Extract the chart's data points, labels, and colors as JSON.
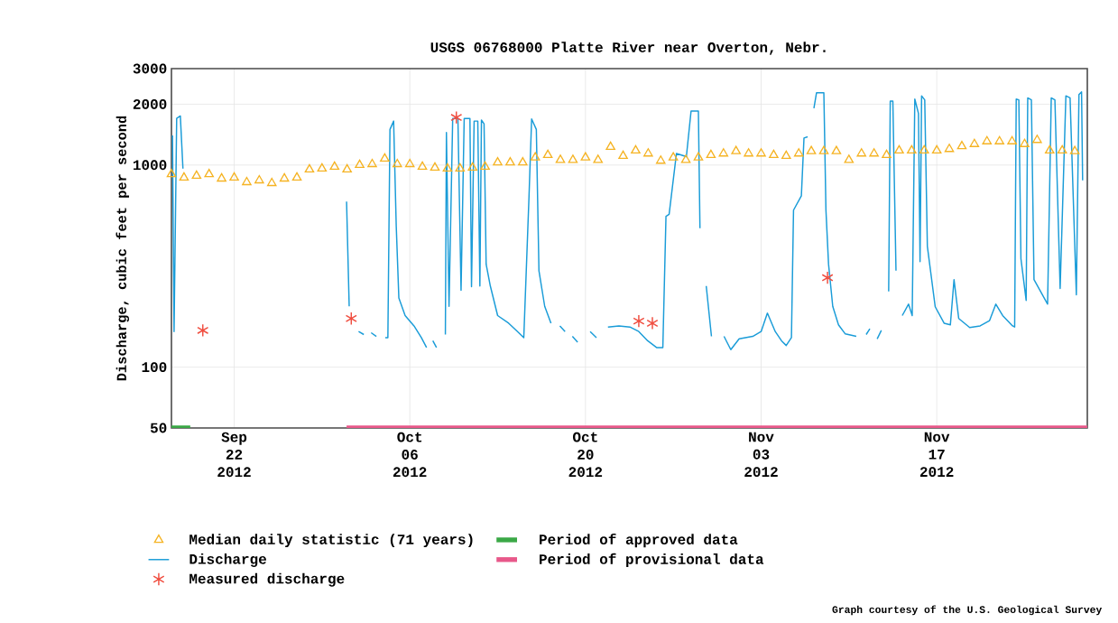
{
  "chart_data": {
    "type": "line",
    "title": "USGS 06768000 Platte River near Overton, Nebr.",
    "ylabel": "Discharge, cubic feet per second",
    "log": "y",
    "grid": true,
    "legend": "bottom",
    "xlim": [
      "2012-09-17",
      "2012-11-29"
    ],
    "ylim": [
      50,
      3000
    ],
    "xticks": [
      {
        "value": "2012-09-22",
        "label": "Sep 22 2012"
      },
      {
        "value": "2012-10-06",
        "label": "Oct 06 2012"
      },
      {
        "value": "2012-10-20",
        "label": "Oct 20 2012"
      },
      {
        "value": "2012-11-03",
        "label": "Nov 03 2012"
      },
      {
        "value": "2012-11-17",
        "label": "Nov 17 2012"
      }
    ],
    "yticks": [
      50,
      100,
      1000,
      2000,
      3000
    ],
    "series": [
      {
        "name": "Median daily statistic (71 years)",
        "type": "scatter",
        "marker": "triangle",
        "color": "#f5b323",
        "x": [
          "2012-09-17",
          "2012-09-18",
          "2012-09-19",
          "2012-09-20",
          "2012-09-21",
          "2012-09-22",
          "2012-09-23",
          "2012-09-24",
          "2012-09-25",
          "2012-09-26",
          "2012-09-27",
          "2012-09-28",
          "2012-09-29",
          "2012-09-30",
          "2012-10-01",
          "2012-10-02",
          "2012-10-03",
          "2012-10-04",
          "2012-10-05",
          "2012-10-06",
          "2012-10-07",
          "2012-10-08",
          "2012-10-09",
          "2012-10-10",
          "2012-10-11",
          "2012-10-12",
          "2012-10-13",
          "2012-10-14",
          "2012-10-15",
          "2012-10-16",
          "2012-10-17",
          "2012-10-18",
          "2012-10-19",
          "2012-10-20",
          "2012-10-21",
          "2012-10-22",
          "2012-10-23",
          "2012-10-24",
          "2012-10-25",
          "2012-10-26",
          "2012-10-27",
          "2012-10-28",
          "2012-10-29",
          "2012-10-30",
          "2012-10-31",
          "2012-11-01",
          "2012-11-02",
          "2012-11-03",
          "2012-11-04",
          "2012-11-05",
          "2012-11-06",
          "2012-11-07",
          "2012-11-08",
          "2012-11-09",
          "2012-11-10",
          "2012-11-11",
          "2012-11-12",
          "2012-11-13",
          "2012-11-14",
          "2012-11-15",
          "2012-11-16",
          "2012-11-17",
          "2012-11-18",
          "2012-11-19",
          "2012-11-20",
          "2012-11-21",
          "2012-11-22",
          "2012-11-23",
          "2012-11-24",
          "2012-11-25",
          "2012-11-26",
          "2012-11-27",
          "2012-11-28"
        ],
        "values": [
          900,
          866,
          884,
          900,
          857,
          866,
          822,
          839,
          814,
          857,
          866,
          950,
          960,
          980,
          950,
          1000,
          1010,
          1075,
          1010,
          1010,
          980,
          970,
          960,
          960,
          970,
          980,
          1030,
          1030,
          1030,
          1090,
          1120,
          1060,
          1060,
          1090,
          1060,
          1230,
          1110,
          1180,
          1140,
          1050,
          1090,
          1060,
          1090,
          1120,
          1140,
          1170,
          1140,
          1140,
          1120,
          1110,
          1140,
          1170,
          1170,
          1170,
          1060,
          1140,
          1140,
          1120,
          1180,
          1180,
          1180,
          1180,
          1200,
          1240,
          1270,
          1310,
          1310,
          1310,
          1270,
          1330,
          1180,
          1180,
          1170
        ]
      },
      {
        "name": "Discharge",
        "marker": "none",
        "color": "#1a9cd8",
        "x": [
          "2012-09-17T02:00",
          "2012-09-17T05:00",
          "2012-09-17T10:00",
          "2012-09-17T17:00",
          "2012-09-17T22:00",
          "2012-09-24T00:00",
          "2012-09-30T23:00",
          "2012-10-01T04:00",
          "2012-10-01T12:00",
          "2012-10-01T22:00",
          "2012-10-02T08:00",
          "2012-10-02T14:00",
          "2012-10-02T22:00",
          "2012-10-03T08:00",
          "2012-10-03T14:00",
          "2012-10-04T01:00",
          "2012-10-04T06:00",
          "2012-10-04T10:00",
          "2012-10-04T17:00",
          "2012-10-04T22:00",
          "2012-10-05T03:00",
          "2012-10-05T15:00",
          "2012-10-06T08:00",
          "2012-10-06T22:00",
          "2012-10-07T08:00",
          "2012-10-07T14:00",
          "2012-10-07T20:00",
          "2012-10-08T03:00",
          "2012-10-08T12:00",
          "2012-10-08T20:00",
          "2012-10-08T22:00",
          "2012-10-09T03:00",
          "2012-10-09T10:00",
          "2012-10-09T20:00",
          "2012-10-10T02:00",
          "2012-10-10T08:00",
          "2012-10-10T19:00",
          "2012-10-10T22:00",
          "2012-10-11T03:00",
          "2012-10-11T10:00",
          "2012-10-11T14:00",
          "2012-10-11T17:00",
          "2012-10-11T22:00",
          "2012-10-12T02:00",
          "2012-10-12T10:00",
          "2012-10-13T00:00",
          "2012-10-13T21:00",
          "2012-10-14T14:00",
          "2012-10-15T02:00",
          "2012-10-15T12:00",
          "2012-10-15T17:00",
          "2012-10-16T02:00",
          "2012-10-16T07:00",
          "2012-10-16T18:00",
          "2012-10-17T06:00",
          "2012-10-17T14:00",
          "2012-10-17T23:00",
          "2012-10-18T09:00",
          "2012-10-18T16:00",
          "2012-10-18T23:00",
          "2012-10-19T09:00",
          "2012-10-19T20:00",
          "2012-10-20T09:00",
          "2012-10-20T21:00",
          "2012-10-21T08:00",
          "2012-10-21T19:00",
          "2012-10-22T16:00",
          "2012-10-23T13:00",
          "2012-10-24T06:00",
          "2012-10-24T23:00",
          "2012-10-25T16:00",
          "2012-10-26T04:00",
          "2012-10-26T10:00",
          "2012-10-26T16:00",
          "2012-10-27T06:00",
          "2012-10-28T01:00",
          "2012-10-28T10:00",
          "2012-10-29T00:00",
          "2012-10-29T03:00",
          "2012-10-29T09:00",
          "2012-10-29T15:00",
          "2012-10-30T01:00",
          "2012-10-30T12:00",
          "2012-10-31T01:00",
          "2012-10-31T14:00",
          "2012-11-01T06:00",
          "2012-11-02T08:00",
          "2012-11-03T00:00",
          "2012-11-03T12:00",
          "2012-11-04T03:00",
          "2012-11-04T15:00",
          "2012-11-05T00:00",
          "2012-11-05T10:00",
          "2012-11-05T14:00",
          "2012-11-06T05:00",
          "2012-11-06T10:00",
          "2012-11-06T17:00",
          "2012-11-06T23:00",
          "2012-11-07T05:00",
          "2012-11-07T10:00",
          "2012-11-08T00:00",
          "2012-11-08T04:00",
          "2012-11-08T09:00",
          "2012-11-08T17:00",
          "2012-11-09T04:00",
          "2012-11-09T17:00",
          "2012-11-10T14:00",
          "2012-11-11T00:00",
          "2012-11-11T09:00",
          "2012-11-11T16:00",
          "2012-11-11T23:00",
          "2012-11-12T06:00",
          "2012-11-12T14:00",
          "2012-11-12T21:00",
          "2012-11-13T04:00",
          "2012-11-13T07:00",
          "2012-11-13T12:00",
          "2012-11-13T18:00",
          "2012-11-14T00:00",
          "2012-11-14T06:00",
          "2012-11-14T18:00",
          "2012-11-15T01:00",
          "2012-11-15T06:00",
          "2012-11-15T13:00",
          "2012-11-15T16:00",
          "2012-11-15T19:00",
          "2012-11-16T01:00",
          "2012-11-16T06:00",
          "2012-11-16T21:00",
          "2012-11-17T14:00",
          "2012-11-18T02:00",
          "2012-11-18T09:00",
          "2012-11-18T18:00",
          "2012-11-19T15:00",
          "2012-11-20T11:00",
          "2012-11-21T05:00",
          "2012-11-21T17:00",
          "2012-11-22T06:00",
          "2012-11-23T01:00",
          "2012-11-23T05:00",
          "2012-11-23T08:00",
          "2012-11-23T13:00",
          "2012-11-23T17:00",
          "2012-11-24T03:00",
          "2012-11-24T06:00",
          "2012-11-24T13:00",
          "2012-11-24T18:00",
          "2012-11-25T20:00",
          "2012-11-26T03:00",
          "2012-11-26T10:00",
          "2012-11-26T20:00",
          "2012-11-27T07:00",
          "2012-11-27T15:00",
          "2012-11-28T03:00",
          "2012-11-28T08:00",
          "2012-11-28T13:00",
          "2012-11-28T15:00"
        ],
        "values": [
          1400,
          150,
          1700,
          1750,
          960,
          null,
          660,
          200,
          null,
          150,
          145,
          null,
          148,
          142,
          null,
          140,
          140,
          1500,
          1650,
          500,
          220,
          180,
          160,
          140,
          125,
          null,
          135,
          125,
          null,
          145,
          1450,
          200,
          1700,
          1700,
          240,
          1700,
          1700,
          250,
          1650,
          1650,
          252,
          1670,
          1600,
          323,
          252,
          180,
          165,
          150,
          140,
          700,
          1690,
          1500,
          300,
          200,
          165,
          null,
          160,
          150,
          null,
          142,
          133,
          null,
          150,
          140,
          null,
          158,
          160,
          158,
          150,
          135,
          125,
          125,
          557,
          570,
          1140,
          1100,
          1850,
          1850,
          487,
          null,
          252,
          142,
          null,
          142,
          122,
          138,
          142,
          150,
          185,
          150,
          135,
          128,
          140,
          598,
          705,
          1360,
          1380,
          null,
          1910,
          2280,
          2280,
          598,
          323,
          200,
          162,
          146,
          142,
          null,
          145,
          155,
          null,
          138,
          152,
          null,
          237,
          2070,
          2070,
          300,
          null,
          180,
          205,
          180,
          2120,
          1800,
          333,
          2200,
          2100,
          396,
          199,
          165,
          162,
          271,
          174,
          157,
          160,
          170,
          205,
          180,
          160,
          158,
          2120,
          2100,
          344,
          214,
          2150,
          2100,
          271,
          205,
          2150,
          2100,
          245,
          2200,
          2150,
          228,
          2230,
          2300,
          839
        ]
      },
      {
        "name": "Measured discharge",
        "type": "scatter",
        "marker": "cross",
        "color": "#f04e40",
        "x": [
          "2012-09-19T12:00",
          "2012-10-01T08:00",
          "2012-10-09T17:00",
          "2012-10-24T06:00",
          "2012-10-25T08:00",
          "2012-11-08T07:00"
        ],
        "values": [
          152,
          174,
          1720,
          169,
          165,
          277
        ]
      },
      {
        "name": "Period of approved data",
        "type": "line",
        "marker": "none",
        "color": "#3aa846",
        "x": [
          "2012-09-17",
          "2012-09-18T12:00"
        ],
        "values": [
          50,
          50
        ]
      },
      {
        "name": "Period of provisional data",
        "type": "line",
        "marker": "none",
        "color": "#e8588a",
        "x": [
          "2012-09-30T23:00",
          "2012-11-29"
        ],
        "values": [
          50,
          50
        ]
      }
    ],
    "annotations": [
      "Graph courtesy of the U.S. Geological Survey"
    ]
  }
}
